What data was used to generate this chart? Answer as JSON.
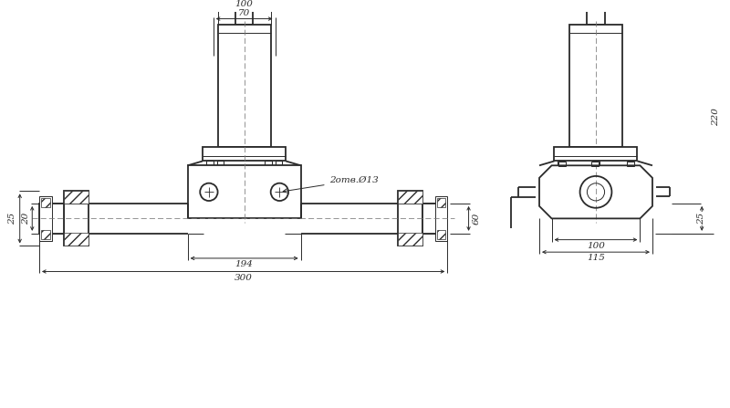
{
  "bg_color": "#ffffff",
  "line_color": "#2a2a2a",
  "dim_fontsize": 7.5,
  "label_fontsize": 7.5,
  "fig_width": 8.0,
  "fig_height": 4.47,
  "dpi": 100,
  "dims_front": {
    "width_100": "100",
    "width_70": "70",
    "width_194": "194",
    "width_300": "300",
    "height_60": "60",
    "height_25": "25",
    "height_20": "20",
    "holes": "2отв.Ø13"
  },
  "dims_side": {
    "height_220": "220",
    "height_25": "25",
    "width_100": "100",
    "width_115": "115"
  }
}
